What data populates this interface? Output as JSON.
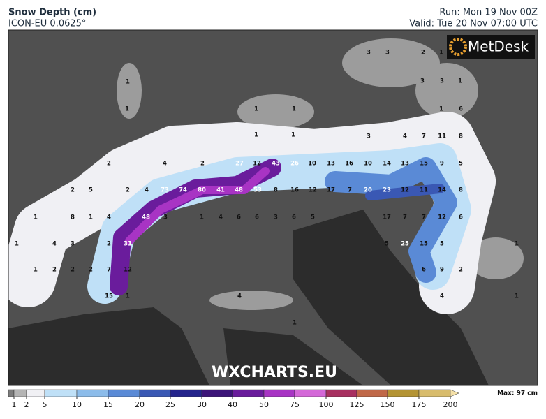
{
  "header": {
    "title": "Snow Depth (cm)",
    "subtitle": "ICON-EU 0.0625°",
    "run": "Run: Mon 19 Nov 00Z",
    "valid": "Valid: Tue 20 Nov 07:00 UTC"
  },
  "logo": "MetDesk",
  "watermark": "WXCHARTS.EU",
  "map_labels": [
    "3",
    "3",
    "2",
    "1",
    "1",
    "3",
    "3",
    "1",
    "1",
    "1",
    "1",
    "1",
    "6",
    "1",
    "1",
    "3",
    "4",
    "7",
    "11",
    "8",
    "2",
    "4",
    "2",
    "27",
    "12",
    "43",
    "26",
    "10",
    "13",
    "16",
    "10",
    "14",
    "13",
    "15",
    "9",
    "5",
    "2",
    "5",
    "2",
    "4",
    "73",
    "74",
    "80",
    "41",
    "48",
    "53",
    "8",
    "16",
    "12",
    "17",
    "7",
    "20",
    "23",
    "12",
    "11",
    "14",
    "8",
    "1",
    "8",
    "1",
    "4",
    "48",
    "3",
    "1",
    "4",
    "6",
    "6",
    "3",
    "6",
    "5",
    "17",
    "7",
    "7",
    "12",
    "6",
    "1",
    "4",
    "3",
    "2",
    "31",
    "5",
    "25",
    "15",
    "5",
    "1",
    "1",
    "2",
    "2",
    "2",
    "7",
    "12",
    "6",
    "9",
    "2",
    "15",
    "1",
    "4",
    "4",
    "1",
    "1"
  ],
  "legend": {
    "ticks": [
      1,
      2,
      5,
      10,
      15,
      20,
      25,
      30,
      40,
      50,
      75,
      100,
      125,
      150,
      175,
      200
    ],
    "colors": [
      "#7c7c7c",
      "#b4b4b4",
      "#f0f0f4",
      "#bfe0f7",
      "#8cbcea",
      "#5a8ad6",
      "#3a58b4",
      "#24248c",
      "#3c1478",
      "#6a1c9c",
      "#a834c4",
      "#d468d8",
      "#a83060",
      "#c06848",
      "#b49434",
      "#d8bc6c",
      "#f4e0a8"
    ],
    "max_label": "Max: 97 cm"
  }
}
